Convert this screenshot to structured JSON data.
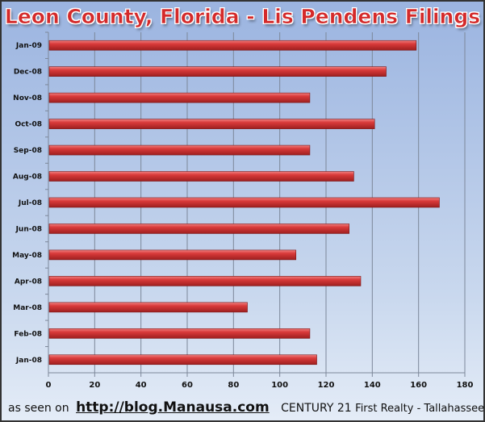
{
  "chart_data": {
    "type": "bar",
    "orientation": "horizontal",
    "title": "Leon County, Florida - Lis Pendens Filings",
    "categories": [
      "Jan-09",
      "Dec-08",
      "Nov-08",
      "Oct-08",
      "Sep-08",
      "Aug-08",
      "Jul-08",
      "Jun-08",
      "May-08",
      "Apr-08",
      "Mar-08",
      "Feb-08",
      "Jan-08"
    ],
    "values": [
      159,
      146,
      113,
      141,
      113,
      132,
      169,
      130,
      107,
      135,
      86,
      113,
      116
    ],
    "xlim": [
      0,
      180
    ],
    "xticks": [
      0,
      20,
      40,
      60,
      80,
      100,
      120,
      140,
      160,
      180
    ],
    "grid": "vertical",
    "bar_color": "#d93a3a"
  },
  "footer": {
    "prefix": "as seen on",
    "url": "http://blog.Manausa.com",
    "brand": "CENTURY 21",
    "suffix": "First Realty - Tallahassee, FL"
  }
}
